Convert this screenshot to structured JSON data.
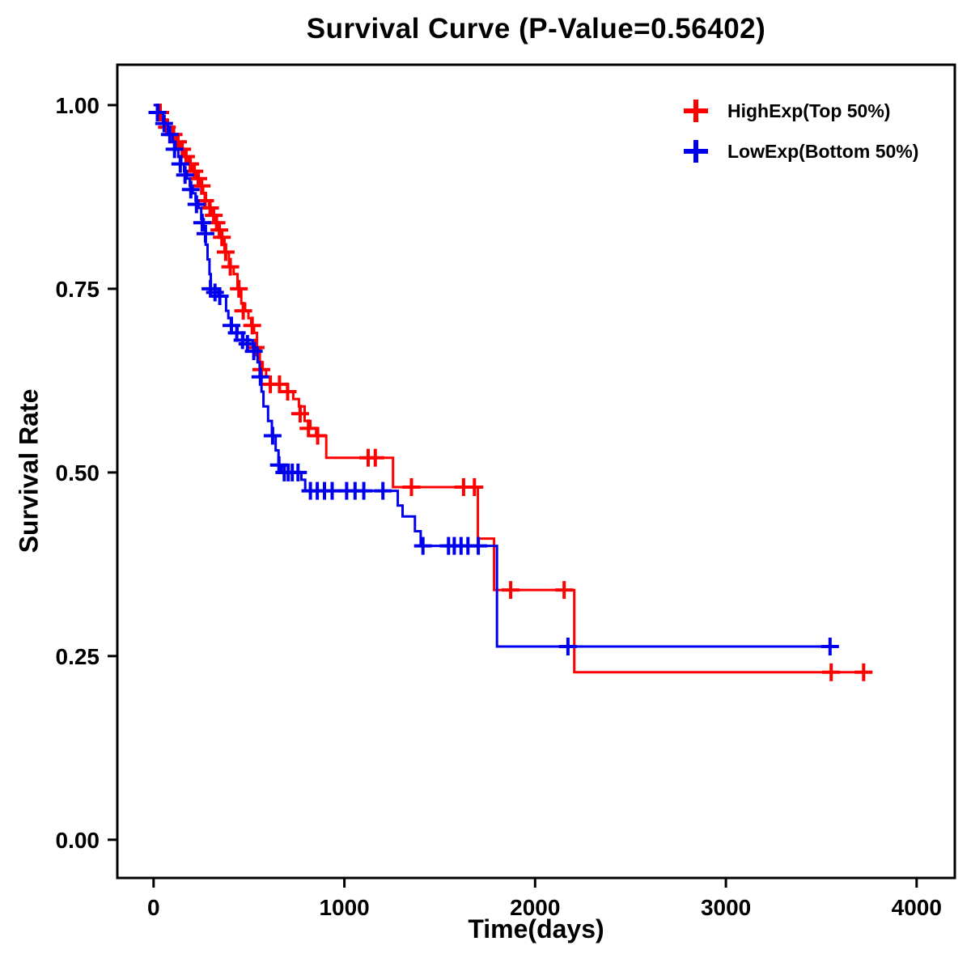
{
  "figure": {
    "background": "#ffffff",
    "text_color": "#000000"
  },
  "chart_data": {
    "type": "line",
    "subtype": "kaplan-meier-step-survival",
    "title": "Survival Curve (P-Value=0.56402)",
    "p_value": "0.56402",
    "xlabel": "Time(days)",
    "ylabel": "Survival Rate",
    "xlim": [
      -190,
      4200
    ],
    "ylim": [
      -0.052,
      1.055
    ],
    "grid": false,
    "legend_position": "top-right",
    "xticks": {
      "values": [
        0,
        1000,
        2000,
        3000,
        4000
      ],
      "labels": [
        "0",
        "1000",
        "2000",
        "3000",
        "4000"
      ]
    },
    "yticks": {
      "values": [
        0,
        0.25,
        0.5,
        0.75,
        1
      ],
      "labels": [
        "0.00",
        "0.25",
        "0.50",
        "0.75",
        "1.00"
      ]
    },
    "series": [
      {
        "name": "HighExp(Top 50%)",
        "color": "#FF0000",
        "steps": [
          [
            0,
            1.0
          ],
          [
            25,
            0.99
          ],
          [
            50,
            0.98
          ],
          [
            75,
            0.97
          ],
          [
            100,
            0.96
          ],
          [
            120,
            0.95
          ],
          [
            140,
            0.94
          ],
          [
            160,
            0.93
          ],
          [
            185,
            0.92
          ],
          [
            205,
            0.91
          ],
          [
            225,
            0.9
          ],
          [
            245,
            0.89
          ],
          [
            260,
            0.88
          ],
          [
            275,
            0.87
          ],
          [
            290,
            0.86
          ],
          [
            305,
            0.85
          ],
          [
            320,
            0.84
          ],
          [
            335,
            0.83
          ],
          [
            350,
            0.82
          ],
          [
            372,
            0.8
          ],
          [
            395,
            0.78
          ],
          [
            420,
            0.77
          ],
          [
            440,
            0.75
          ],
          [
            460,
            0.73
          ],
          [
            480,
            0.72
          ],
          [
            497,
            0.71
          ],
          [
            512,
            0.7
          ],
          [
            527,
            0.69
          ],
          [
            542,
            0.67
          ],
          [
            557,
            0.65
          ],
          [
            572,
            0.64
          ],
          [
            590,
            0.63
          ],
          [
            610,
            0.62
          ],
          [
            700,
            0.61
          ],
          [
            732,
            0.6
          ],
          [
            762,
            0.59
          ],
          [
            792,
            0.57
          ],
          [
            822,
            0.56
          ],
          [
            852,
            0.55
          ],
          [
            905,
            0.52
          ],
          [
            1255,
            0.48
          ],
          [
            1700,
            0.41
          ],
          [
            1785,
            0.34
          ],
          [
            2205,
            0.228
          ],
          [
            3720,
            0.228
          ]
        ],
        "censor_marks": [
          [
            35,
            0.99
          ],
          [
            70,
            0.97
          ],
          [
            105,
            0.96
          ],
          [
            128,
            0.95
          ],
          [
            150,
            0.94
          ],
          [
            170,
            0.93
          ],
          [
            192,
            0.92
          ],
          [
            214,
            0.91
          ],
          [
            234,
            0.9
          ],
          [
            252,
            0.89
          ],
          [
            270,
            0.87
          ],
          [
            296,
            0.86
          ],
          [
            315,
            0.85
          ],
          [
            330,
            0.84
          ],
          [
            345,
            0.83
          ],
          [
            358,
            0.82
          ],
          [
            378,
            0.8
          ],
          [
            402,
            0.78
          ],
          [
            447,
            0.75
          ],
          [
            470,
            0.72
          ],
          [
            517,
            0.7
          ],
          [
            535,
            0.67
          ],
          [
            565,
            0.64
          ],
          [
            612,
            0.62
          ],
          [
            660,
            0.62
          ],
          [
            703,
            0.61
          ],
          [
            768,
            0.58
          ],
          [
            812,
            0.56
          ],
          [
            860,
            0.55
          ],
          [
            1125,
            0.52
          ],
          [
            1162,
            0.52
          ],
          [
            1352,
            0.48
          ],
          [
            1625,
            0.48
          ],
          [
            1682,
            0.48
          ],
          [
            1872,
            0.34
          ],
          [
            2152,
            0.34
          ],
          [
            3552,
            0.228
          ],
          [
            3722,
            0.228
          ]
        ]
      },
      {
        "name": "LowExp(Bottom 50%)",
        "color": "#0000EE",
        "steps": [
          [
            0,
            1.0
          ],
          [
            25,
            0.99
          ],
          [
            50,
            0.975
          ],
          [
            75,
            0.96
          ],
          [
            100,
            0.95
          ],
          [
            115,
            0.94
          ],
          [
            130,
            0.93
          ],
          [
            145,
            0.92
          ],
          [
            160,
            0.91
          ],
          [
            175,
            0.9
          ],
          [
            190,
            0.89
          ],
          [
            205,
            0.88
          ],
          [
            220,
            0.87
          ],
          [
            235,
            0.86
          ],
          [
            250,
            0.845
          ],
          [
            263,
            0.83
          ],
          [
            273,
            0.81
          ],
          [
            283,
            0.79
          ],
          [
            293,
            0.77
          ],
          [
            300,
            0.75
          ],
          [
            340,
            0.74
          ],
          [
            380,
            0.72
          ],
          [
            392,
            0.71
          ],
          [
            405,
            0.7
          ],
          [
            440,
            0.69
          ],
          [
            470,
            0.68
          ],
          [
            520,
            0.67
          ],
          [
            545,
            0.65
          ],
          [
            556,
            0.63
          ],
          [
            566,
            0.61
          ],
          [
            576,
            0.59
          ],
          [
            600,
            0.57
          ],
          [
            620,
            0.55
          ],
          [
            640,
            0.53
          ],
          [
            655,
            0.51
          ],
          [
            670,
            0.5
          ],
          [
            775,
            0.49
          ],
          [
            795,
            0.475
          ],
          [
            1280,
            0.455
          ],
          [
            1305,
            0.44
          ],
          [
            1370,
            0.42
          ],
          [
            1400,
            0.4
          ],
          [
            1800,
            0.263
          ],
          [
            3550,
            0.263
          ]
        ],
        "censor_marks": [
          [
            20,
            0.99
          ],
          [
            55,
            0.975
          ],
          [
            85,
            0.96
          ],
          [
            110,
            0.94
          ],
          [
            140,
            0.92
          ],
          [
            165,
            0.905
          ],
          [
            195,
            0.885
          ],
          [
            225,
            0.865
          ],
          [
            255,
            0.84
          ],
          [
            272,
            0.825
          ],
          [
            298,
            0.75
          ],
          [
            322,
            0.745
          ],
          [
            347,
            0.74
          ],
          [
            408,
            0.7
          ],
          [
            436,
            0.69
          ],
          [
            466,
            0.68
          ],
          [
            492,
            0.675
          ],
          [
            525,
            0.665
          ],
          [
            560,
            0.63
          ],
          [
            624,
            0.55
          ],
          [
            657,
            0.51
          ],
          [
            685,
            0.5
          ],
          [
            706,
            0.5
          ],
          [
            727,
            0.5
          ],
          [
            757,
            0.5
          ],
          [
            822,
            0.475
          ],
          [
            858,
            0.475
          ],
          [
            896,
            0.475
          ],
          [
            936,
            0.475
          ],
          [
            1012,
            0.475
          ],
          [
            1056,
            0.475
          ],
          [
            1102,
            0.475
          ],
          [
            1202,
            0.475
          ],
          [
            1412,
            0.4
          ],
          [
            1546,
            0.4
          ],
          [
            1576,
            0.4
          ],
          [
            1612,
            0.4
          ],
          [
            1648,
            0.4
          ],
          [
            1702,
            0.4
          ],
          [
            2172,
            0.263
          ],
          [
            3546,
            0.263
          ]
        ]
      }
    ]
  }
}
